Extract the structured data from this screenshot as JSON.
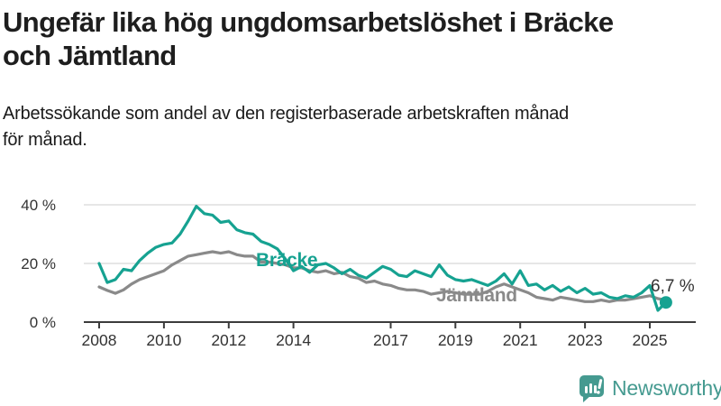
{
  "header": {
    "title": "Ungefär lika hög ungdomsarbetslöshet i Bräcke\noch Jämtland",
    "subtitle": "Arbetssökande som andel av den registerbaserade arbetskraften månad\nför månad."
  },
  "footer": {
    "brand": "Newsworthy"
  },
  "colors": {
    "bracke": "#16a291",
    "jamtland": "#8a8a8a",
    "axis": "#3c3c3c",
    "grid": "#d8d8d8",
    "tick_text": "#333333",
    "annotation_text": "#333333",
    "title_text": "#1e1e1e",
    "brand": "#459a90"
  },
  "chart_data": {
    "type": "line",
    "title": "Ungefär lika hög ungdomsarbetslöshet i Bräcke och Jämtland",
    "subtitle": "Arbetssökande som andel av den registerbaserade arbetskraften månad för månad.",
    "xlabel": "",
    "ylabel": "",
    "unit": "%",
    "grid": true,
    "legend": "inline-labels",
    "ylim": [
      0,
      44
    ],
    "xlim": [
      2007.5,
      2026.2
    ],
    "y_ticks": [
      {
        "label": "0 %",
        "value": 0
      },
      {
        "label": "20 %",
        "value": 20
      },
      {
        "label": "40 %",
        "value": 40
      }
    ],
    "x_ticks": [
      {
        "label": "2008",
        "year": 2008
      },
      {
        "label": "2010",
        "year": 2010
      },
      {
        "label": "2012",
        "year": 2012
      },
      {
        "label": "2014",
        "year": 2014
      },
      {
        "label": "2017",
        "year": 2017
      },
      {
        "label": "2019",
        "year": 2019
      },
      {
        "label": "2021",
        "year": 2021
      },
      {
        "label": "2023",
        "year": 2023
      },
      {
        "label": "2025",
        "year": 2025
      }
    ],
    "x": [
      2008,
      2008.25,
      2008.5,
      2008.75,
      2009,
      2009.25,
      2009.5,
      2009.75,
      2010,
      2010.25,
      2010.5,
      2010.75,
      2011,
      2011.25,
      2011.5,
      2011.75,
      2012,
      2012.25,
      2012.5,
      2012.75,
      2013,
      2013.25,
      2013.5,
      2013.75,
      2014,
      2014.25,
      2014.5,
      2014.75,
      2015,
      2015.25,
      2015.5,
      2015.75,
      2016,
      2016.25,
      2016.5,
      2016.75,
      2017,
      2017.25,
      2017.5,
      2017.75,
      2018,
      2018.25,
      2018.5,
      2018.75,
      2019,
      2019.25,
      2019.5,
      2019.75,
      2020,
      2020.25,
      2020.5,
      2020.75,
      2021,
      2021.25,
      2021.5,
      2021.75,
      2022,
      2022.25,
      2022.5,
      2022.75,
      2023,
      2023.25,
      2023.5,
      2023.75,
      2024,
      2024.25,
      2024.5,
      2024.75,
      2025,
      2025.25,
      2025.5
    ],
    "series": [
      {
        "name": "Bräcke",
        "color_key": "bracke",
        "values": [
          20,
          13.5,
          14.5,
          18,
          17.5,
          21,
          23.5,
          25.5,
          26.5,
          27,
          30,
          34.5,
          39.5,
          37,
          36.5,
          34,
          34.5,
          31.5,
          30.5,
          30,
          27.5,
          26.5,
          25,
          21.5,
          17.5,
          19,
          17,
          19.5,
          20,
          18.5,
          16.5,
          18,
          16,
          15,
          17,
          19,
          18,
          16,
          15.5,
          17.5,
          16.5,
          15.5,
          19.5,
          16,
          14.5,
          14,
          14.5,
          13.5,
          12.5,
          14,
          16.5,
          13,
          17.5,
          12.5,
          13,
          11,
          12.5,
          10.5,
          12,
          10,
          11.5,
          9.5,
          10,
          8.5,
          8,
          9,
          8.5,
          10,
          12.5,
          4,
          6.7
        ]
      },
      {
        "name": "Jämtland",
        "color_key": "jamtland",
        "values": [
          12,
          10.8,
          9.8,
          11,
          13,
          14.5,
          15.5,
          16.5,
          17.5,
          19.5,
          21,
          22.5,
          23,
          23.5,
          24,
          23.5,
          24,
          23,
          22.5,
          22.5,
          20.5,
          20.5,
          20,
          19.5,
          18.5,
          18.5,
          17.5,
          17,
          17.5,
          16.5,
          17,
          15.5,
          15,
          13.5,
          14,
          13,
          12.5,
          11.5,
          11,
          11,
          10.5,
          9.5,
          10,
          10.5,
          10,
          9.5,
          9.5,
          9.5,
          10.5,
          12,
          13,
          12,
          11,
          10,
          8.5,
          8,
          7.5,
          8.5,
          8,
          7.5,
          7,
          7,
          7.5,
          7,
          7.5,
          7.5,
          8,
          8.5,
          9,
          8,
          7.5
        ]
      }
    ],
    "end_annotation": {
      "series": "Bräcke",
      "label": "6,7 %",
      "x": 2025.5,
      "value": 6.7
    }
  }
}
